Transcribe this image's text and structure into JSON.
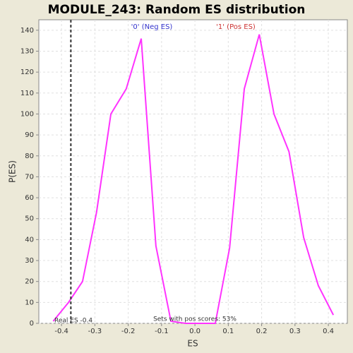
{
  "chart_data": {
    "type": "line",
    "title": "MODULE_243: Random ES distribution",
    "x_label": "ES",
    "y_label": "P(ES)",
    "x": [
      -0.425,
      -0.379,
      -0.337,
      -0.295,
      -0.252,
      -0.206,
      -0.161,
      -0.117,
      -0.072,
      -0.028,
      0.017,
      0.061,
      0.104,
      0.148,
      0.193,
      0.237,
      0.282,
      0.326,
      0.37,
      0.415
    ],
    "series": [
      {
        "color": "#ff33ff",
        "values": [
          1,
          10,
          20,
          53,
          100,
          112,
          136,
          37,
          1,
          0,
          0,
          0,
          36,
          112,
          138,
          100,
          82,
          41,
          18,
          4
        ]
      }
    ],
    "xlim": [
      -0.468,
      0.457
    ],
    "ylim": [
      0,
      145
    ],
    "xticks": [
      -0.4,
      -0.3,
      -0.2,
      -0.1,
      {
        "value": 0,
        "label": "0.0"
      },
      0.1,
      0.2,
      0.3,
      0.4
    ],
    "yticks": [
      0,
      10,
      20,
      30,
      40,
      50,
      60,
      70,
      80,
      90,
      100,
      110,
      120,
      130,
      140
    ],
    "grid": true,
    "real_es": -0.372,
    "annotations": {
      "neg_label": "'0' (Neg ES)",
      "neg_color": "#3333cc",
      "pos_label": "'1' (Pos ES)",
      "pos_color": "#cc3333",
      "real_es_label": "Real ES -0.4",
      "pos_scores": "Sets with pos scores: 53%"
    }
  }
}
